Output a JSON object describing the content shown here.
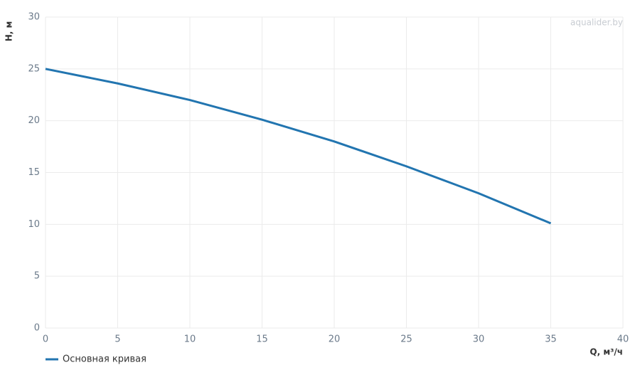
{
  "chart_data": {
    "type": "line",
    "watermark": "aqualider.by",
    "xlabel": "Q, м³/ч",
    "ylabel": "H, м",
    "x": [
      0,
      5,
      10,
      15,
      20,
      25,
      30,
      35
    ],
    "series": [
      {
        "name": "Основная кривая",
        "color": "#2275b0",
        "values": [
          25,
          23.6,
          22,
          20.1,
          18,
          15.6,
          13,
          10.1
        ]
      }
    ],
    "xlim": [
      0,
      40
    ],
    "ylim": [
      0,
      30
    ],
    "xticks": [
      0,
      5,
      10,
      15,
      20,
      25,
      30,
      35,
      40
    ],
    "yticks": [
      0,
      5,
      10,
      15,
      20,
      25,
      30
    ],
    "grid": true,
    "legend": "bottom-left"
  }
}
